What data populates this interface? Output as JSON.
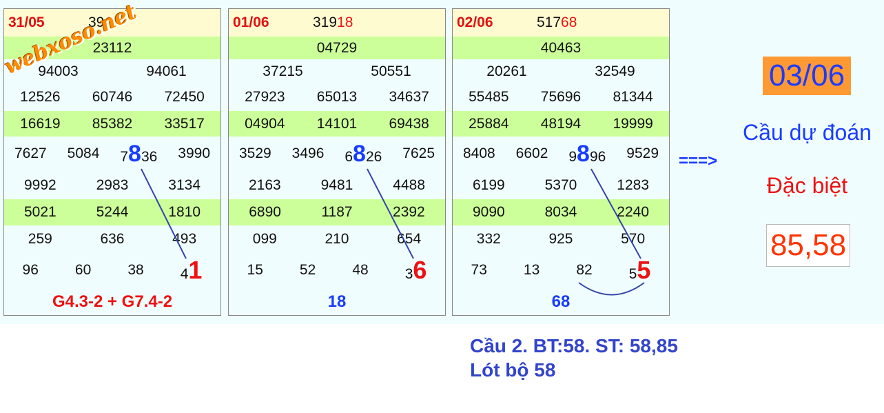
{
  "watermark": "webxoso.net",
  "panels": [
    {
      "date": "31/05",
      "top": [
        {
          "text": "39"
        }
      ],
      "rows": [
        [
          "23112"
        ],
        [
          "94003",
          "94061"
        ],
        [
          "12526",
          "60746",
          "72450"
        ],
        [
          "16619",
          "85382",
          "33517"
        ],
        [
          "7627",
          "5084",
          {
            "pre": "7",
            "mark": "8",
            "post": "36"
          },
          "3990"
        ],
        [
          "9992",
          "2983",
          "3134"
        ],
        [
          "5021",
          "5244",
          "1810"
        ],
        [
          "259",
          "636",
          "493"
        ],
        [
          "96",
          "60",
          "38",
          {
            "pre": "4",
            "mark": "1"
          }
        ]
      ],
      "footer": {
        "text": "G4.3-2 + G7.4-2",
        "red": true
      }
    },
    {
      "date": "01/06",
      "top": [
        {
          "text": "319"
        },
        {
          "text": "18",
          "red": true
        }
      ],
      "rows": [
        [
          "04729"
        ],
        [
          "37215",
          "50551"
        ],
        [
          "27923",
          "65013",
          "34637"
        ],
        [
          "04904",
          "14101",
          "69438"
        ],
        [
          "3529",
          "3496",
          {
            "pre": "6",
            "mark": "8",
            "post": "26"
          },
          "7625"
        ],
        [
          "2163",
          "9481",
          "4488"
        ],
        [
          "6890",
          "1187",
          "2392"
        ],
        [
          "099",
          "210",
          "654"
        ],
        [
          "15",
          "52",
          "48",
          {
            "pre": "3",
            "mark": "6"
          }
        ]
      ],
      "footer": {
        "text": "18",
        "red": false
      }
    },
    {
      "date": "02/06",
      "top": [
        {
          "text": "517"
        },
        {
          "text": "68",
          "red": true
        }
      ],
      "rows": [
        [
          "40463"
        ],
        [
          "20261",
          "32549"
        ],
        [
          "55485",
          "75696",
          "81344"
        ],
        [
          "25884",
          "48194",
          "19999"
        ],
        [
          "8408",
          "6602",
          {
            "pre": "9",
            "mark": "8",
            "post": "96"
          },
          "9529"
        ],
        [
          "6199",
          "5370",
          "1283"
        ],
        [
          "9090",
          "8034",
          "2240"
        ],
        [
          "332",
          "925",
          "570"
        ],
        [
          "73",
          "13",
          "82",
          {
            "pre": "5",
            "mark": "5"
          }
        ]
      ],
      "footer": {
        "text": "68",
        "red": false
      }
    }
  ],
  "arrow": "===>",
  "prediction": {
    "date": "03/06",
    "label": "Cầu dự đoán",
    "kind": "Đặc biệt",
    "numbers": "85,58"
  },
  "notes": [
    "Cầu 2. BT:58. ST: 58,85",
    "Lót bộ 58"
  ]
}
